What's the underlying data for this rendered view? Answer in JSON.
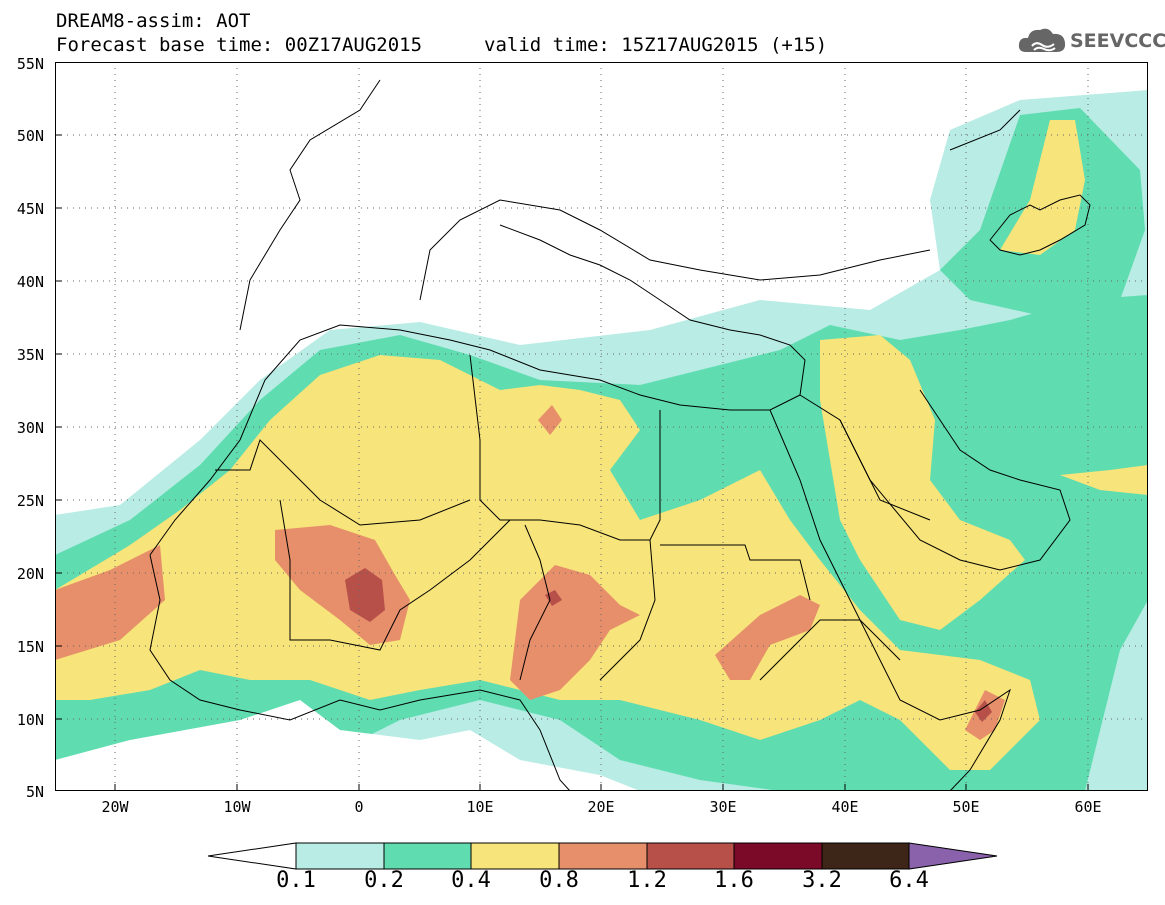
{
  "header": {
    "title": "DREAM8-assim: AOT",
    "base_time": "Forecast base time: 00Z17AUG2015",
    "valid_time": "valid time: 15Z17AUG2015 (+15)",
    "logo_text": "SEEVCCC",
    "logo_icon": "cloud-icon"
  },
  "map": {
    "lat_labels": [
      "55N",
      "50N",
      "45N",
      "40N",
      "35N",
      "30N",
      "25N",
      "20N",
      "15N",
      "10N",
      "5N"
    ],
    "lon_labels": [
      "20W",
      "10W",
      "0",
      "10E",
      "20E",
      "30E",
      "40E",
      "50E",
      "60E"
    ]
  },
  "colorbar": {
    "labels": [
      "0.1",
      "0.2",
      "0.4",
      "0.8",
      "1.2",
      "1.6",
      "3.2",
      "6.4"
    ],
    "colors": [
      "#ffffff",
      "#b8ece4",
      "#5fdcb0",
      "#f7e47a",
      "#e68f6a",
      "#b8504a",
      "#7a0a28",
      "#3d2618",
      "#8a62ac"
    ]
  },
  "palette": {
    "c1": "#b8ece4",
    "c2": "#5fdcb0",
    "c3": "#f7e47a",
    "c4": "#e68f6a",
    "c5": "#b8504a"
  }
}
